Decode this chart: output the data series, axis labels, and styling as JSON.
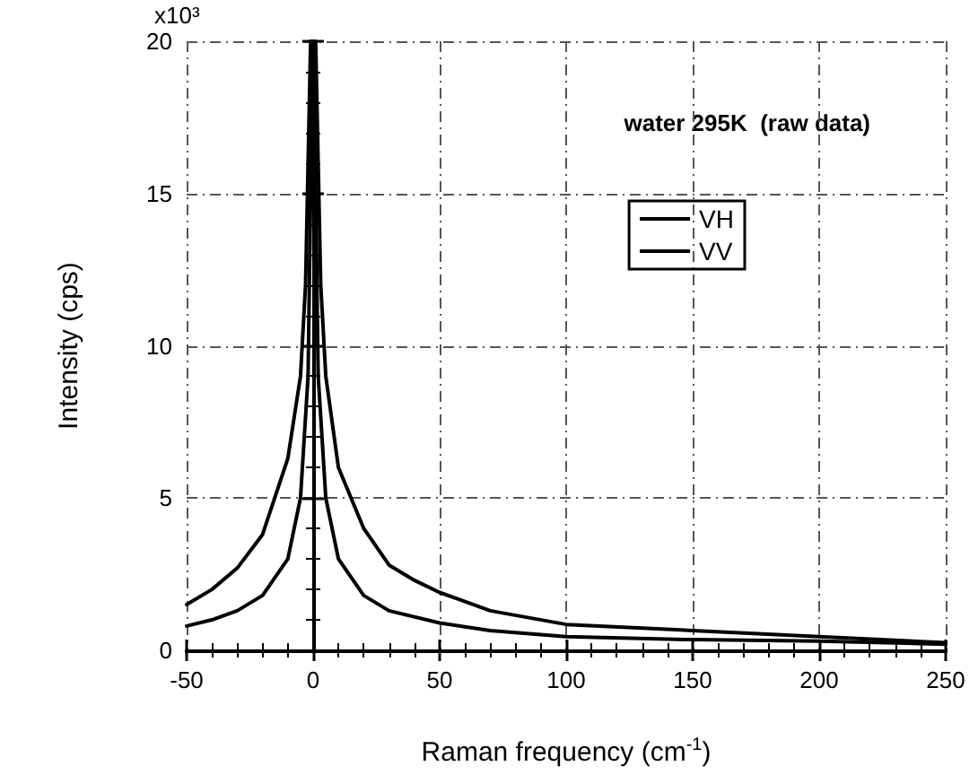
{
  "chart_data": {
    "type": "line",
    "xlabel": "Raman frequency (cm$^{-1}$)",
    "ylabel": "Intensity (cps)",
    "xlim": [
      -50,
      250
    ],
    "ylim": [
      0,
      20
    ],
    "xticks": [
      -50,
      0,
      50,
      100,
      150,
      200,
      250
    ],
    "yticks": [
      0,
      5,
      10,
      15,
      20
    ],
    "grid": true,
    "legend": "top right",
    "line_style": "solid",
    "marker": "none",
    "annotations": [
      "water 295K  (raw data)",
      "x10³"
    ],
    "series": [
      {
        "name": "VH",
        "color": "#000000",
        "x": [
          -50,
          -40,
          -30,
          -20,
          -10,
          -5,
          -2,
          -1,
          0,
          1,
          2,
          5,
          10,
          20,
          30,
          50,
          70,
          100,
          150,
          200,
          250
        ],
        "values": [
          0.8,
          1.0,
          1.3,
          1.8,
          3.0,
          5,
          9,
          15,
          20,
          15,
          9,
          5,
          3.0,
          1.8,
          1.3,
          0.9,
          0.65,
          0.45,
          0.35,
          0.3,
          0.2
        ]
      },
      {
        "name": "VV",
        "color": "#000000",
        "x": [
          -50,
          -40,
          -30,
          -20,
          -10,
          -5,
          -3,
          -1,
          0,
          1,
          3,
          5,
          10,
          20,
          30,
          40,
          50,
          70,
          100,
          150,
          200,
          250
        ],
        "values": [
          1.5,
          2.0,
          2.7,
          3.8,
          6.3,
          9,
          12,
          20,
          20,
          20,
          12,
          9,
          6,
          4,
          2.8,
          2.3,
          1.9,
          1.3,
          0.85,
          0.65,
          0.45,
          0.25
        ]
      }
    ]
  }
}
